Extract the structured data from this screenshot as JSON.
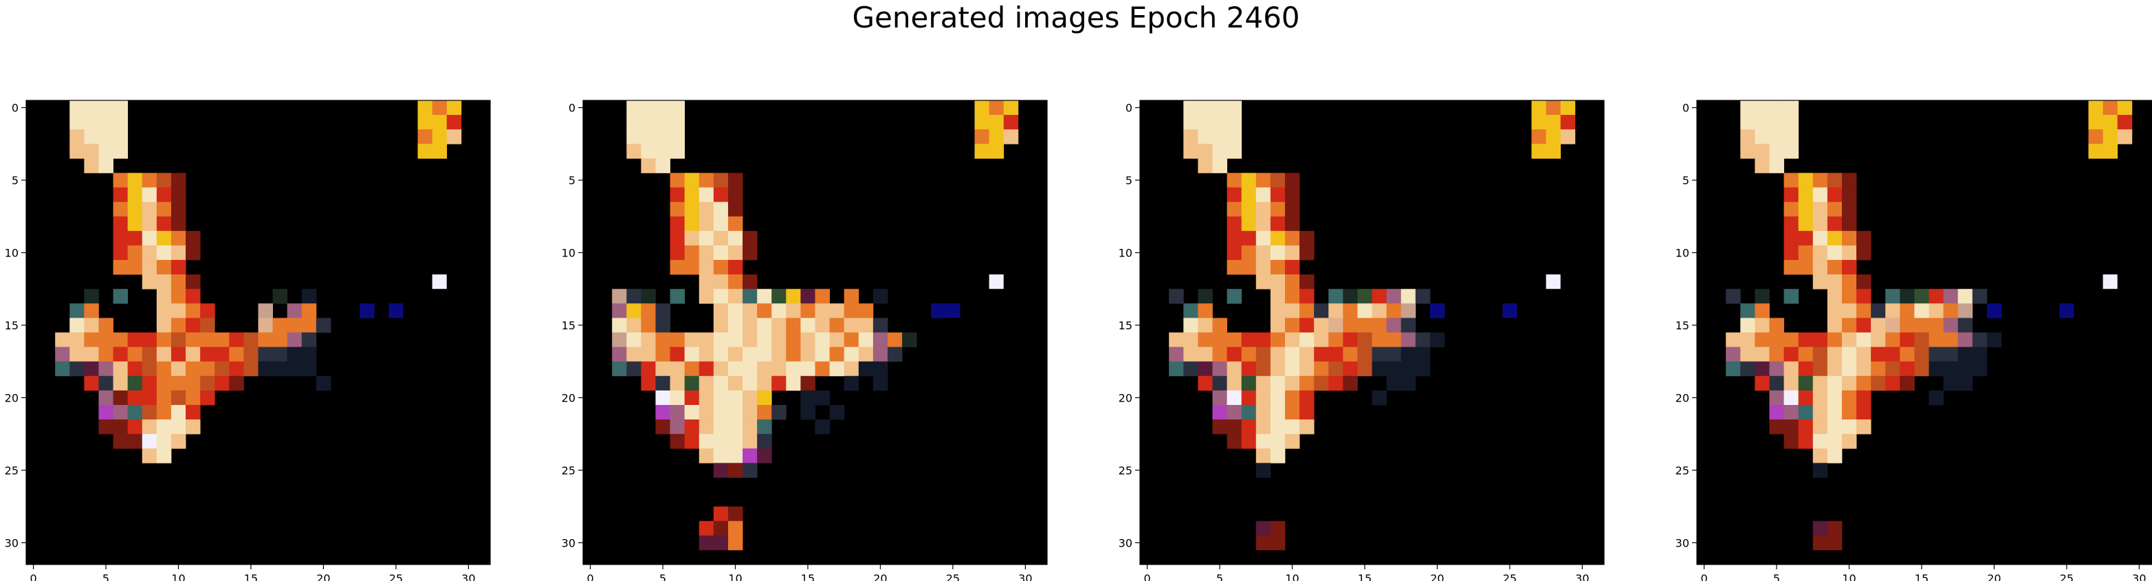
{
  "title": "Generated images Epoch 2460",
  "chart_data": [
    {
      "type": "heatmap",
      "content": "32x32 RGB generated image",
      "xlim": [
        -0.5,
        31.5
      ],
      "ylim": [
        31.5,
        -0.5
      ],
      "xticks": [
        0,
        5,
        10,
        15,
        20,
        25,
        30
      ],
      "yticks": [
        0,
        5,
        10,
        15,
        20,
        25,
        30
      ],
      "xlabel": "",
      "ylabel": ""
    },
    {
      "type": "heatmap",
      "content": "32x32 RGB generated image",
      "xlim": [
        -0.5,
        31.5
      ],
      "ylim": [
        31.5,
        -0.5
      ],
      "xticks": [
        0,
        5,
        10,
        15,
        20,
        25,
        30
      ],
      "yticks": [
        0,
        5,
        10,
        15,
        20,
        25,
        30
      ],
      "xlabel": "",
      "ylabel": ""
    },
    {
      "type": "heatmap",
      "content": "32x32 RGB generated image",
      "xlim": [
        -0.5,
        31.5
      ],
      "ylim": [
        31.5,
        -0.5
      ],
      "xticks": [
        0,
        5,
        10,
        15,
        20,
        25,
        30
      ],
      "yticks": [
        0,
        5,
        10,
        15,
        20,
        25,
        30
      ],
      "xlabel": "",
      "ylabel": ""
    },
    {
      "type": "heatmap",
      "content": "32x32 RGB generated image",
      "xlim": [
        -0.5,
        31.5
      ],
      "ylim": [
        31.5,
        -0.5
      ],
      "xticks": [
        0,
        5,
        10,
        15,
        20,
        25,
        30
      ],
      "yticks": [
        0,
        5,
        10,
        15,
        20,
        25,
        30
      ],
      "xlabel": "",
      "ylabel": ""
    }
  ],
  "colors": {
    "background": "#000000",
    "pale": "#f5e6c0",
    "peach": "#f2c28a",
    "orange": "#e8782a",
    "red": "#d42a18",
    "dark_red": "#7a1a10",
    "yellow": "#f2c21a",
    "white_pixel": "#f4f0ff",
    "navy": "#0a0a80",
    "teal": "#3a6a6a",
    "magenta": "#b040c0"
  }
}
